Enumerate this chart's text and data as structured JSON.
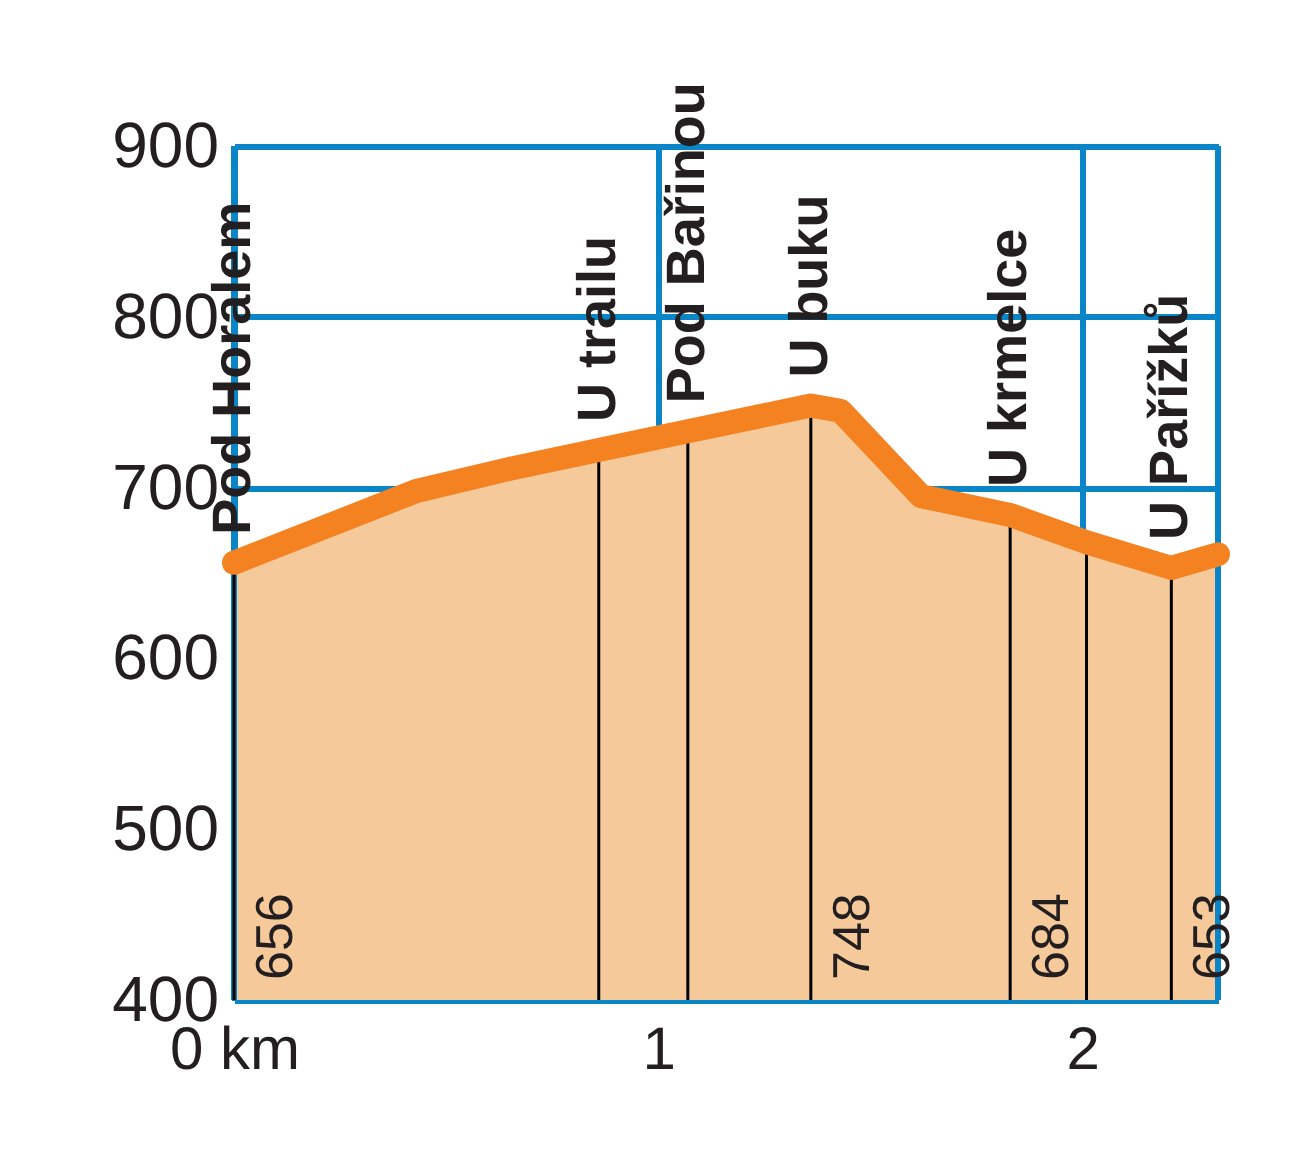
{
  "chart_data": {
    "type": "area",
    "x": [
      0,
      0.43,
      0.65,
      0.86,
      1.07,
      1.36,
      1.43,
      1.62,
      1.83,
      2.01,
      2.21,
      2.32
    ],
    "series": [
      {
        "color": "#f58220",
        "values": [
          656,
          698,
          711,
          722,
          733,
          748,
          745,
          695,
          684,
          668,
          653,
          661
        ]
      }
    ],
    "annotations": [
      {
        "text": "656",
        "x": 0
      },
      {
        "text": "748",
        "x": 1.36
      },
      {
        "text": "684",
        "x": 1.83
      },
      {
        "text": "653",
        "x": 2.21
      }
    ],
    "xlim": [
      0,
      2.32
    ],
    "xticks": [
      {
        "value": 0,
        "label": "0  km"
      },
      1,
      2
    ],
    "ylim": [
      400,
      900
    ],
    "yticks": [
      400,
      500,
      600,
      700,
      800,
      900
    ],
    "grid": true,
    "ref_lines": [
      {
        "axis": "x",
        "value": 0,
        "label": "Pod Horalem",
        "color": "#000000"
      },
      {
        "axis": "x",
        "value": 0.86,
        "label": "U trailu",
        "color": "#000000"
      },
      {
        "axis": "x",
        "value": 1.07,
        "label": "Pod Bařinou",
        "color": "#000000"
      },
      {
        "axis": "x",
        "value": 1.36,
        "label": "U buku",
        "color": "#000000"
      },
      {
        "axis": "x",
        "value": 1.83,
        "label": "U krmelce",
        "color": "#000000"
      },
      {
        "axis": "x",
        "value": 2.01,
        "label": null,
        "color": "#000000"
      },
      {
        "axis": "x",
        "value": 2.21,
        "label": "U Pařížků",
        "color": "#000000"
      }
    ]
  }
}
